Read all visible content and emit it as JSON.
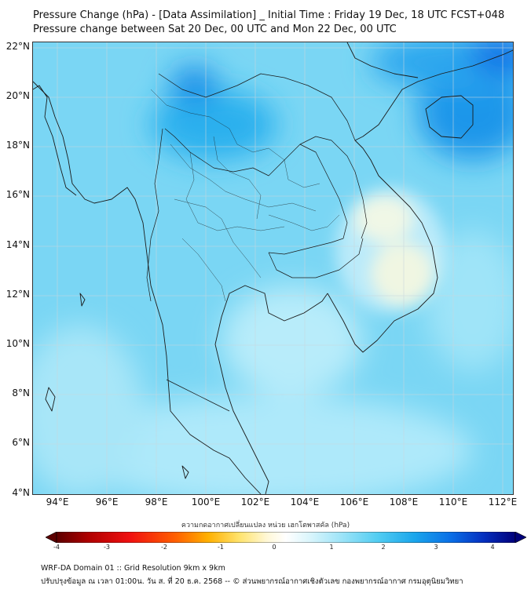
{
  "title": {
    "line1": "Pressure Change (hPa) - [Data Assimilation] _ Initial Time : Friday 19 Dec, 18 UTC FCST+048",
    "line2": "Pressure change between Sat 20 Dec, 00 UTC and Mon 22 Dec, 00 UTC"
  },
  "map": {
    "lat_labels": [
      "22°N",
      "20°N",
      "18°N",
      "16°N",
      "14°N",
      "12°N",
      "10°N",
      "8°N",
      "6°N",
      "4°N"
    ],
    "lon_labels": [
      "94°E",
      "96°E",
      "98°E",
      "100°E",
      "102°E",
      "104°E",
      "106°E",
      "108°E",
      "110°E",
      "112°E"
    ],
    "lat_range": [
      4,
      22.2
    ],
    "lon_range": [
      93.1,
      112.5
    ],
    "background_color": "#7ad6f4",
    "gridlines": true
  },
  "colorbar": {
    "title": "ความกดอากาศเปลี่ยนแปลง หน่วย เฮกโตพาสคัล (hPa)",
    "ticks": [
      "-4",
      "-3",
      "-2",
      "-1",
      "0",
      "1",
      "2",
      "3",
      "4"
    ],
    "range": [
      -4,
      4
    ],
    "extend": "both",
    "colors": [
      "#5c0000",
      "#b00000",
      "#f01010",
      "#ff6000",
      "#ffb000",
      "#ffe470",
      "#fff8d8",
      "#ffffff",
      "#dcf6fc",
      "#9ee4f8",
      "#52cdf2",
      "#1aa6ec",
      "#0a6ee6",
      "#0530c0",
      "#00007a"
    ]
  },
  "footer": {
    "line1": "WRF-DA Domain 01 :: Grid Resolution 9km x 9km",
    "line2": "ปรับปรุงข้อมูล ณ เวลา 01:00น. วัน ส. ที่ 20 ธ.ค. 2568 -- © ส่วนพยากรณ์อากาศเชิงตัวเลข กองพยากรณ์อากาศ กรมอุตุนิยมวิทยา"
  }
}
